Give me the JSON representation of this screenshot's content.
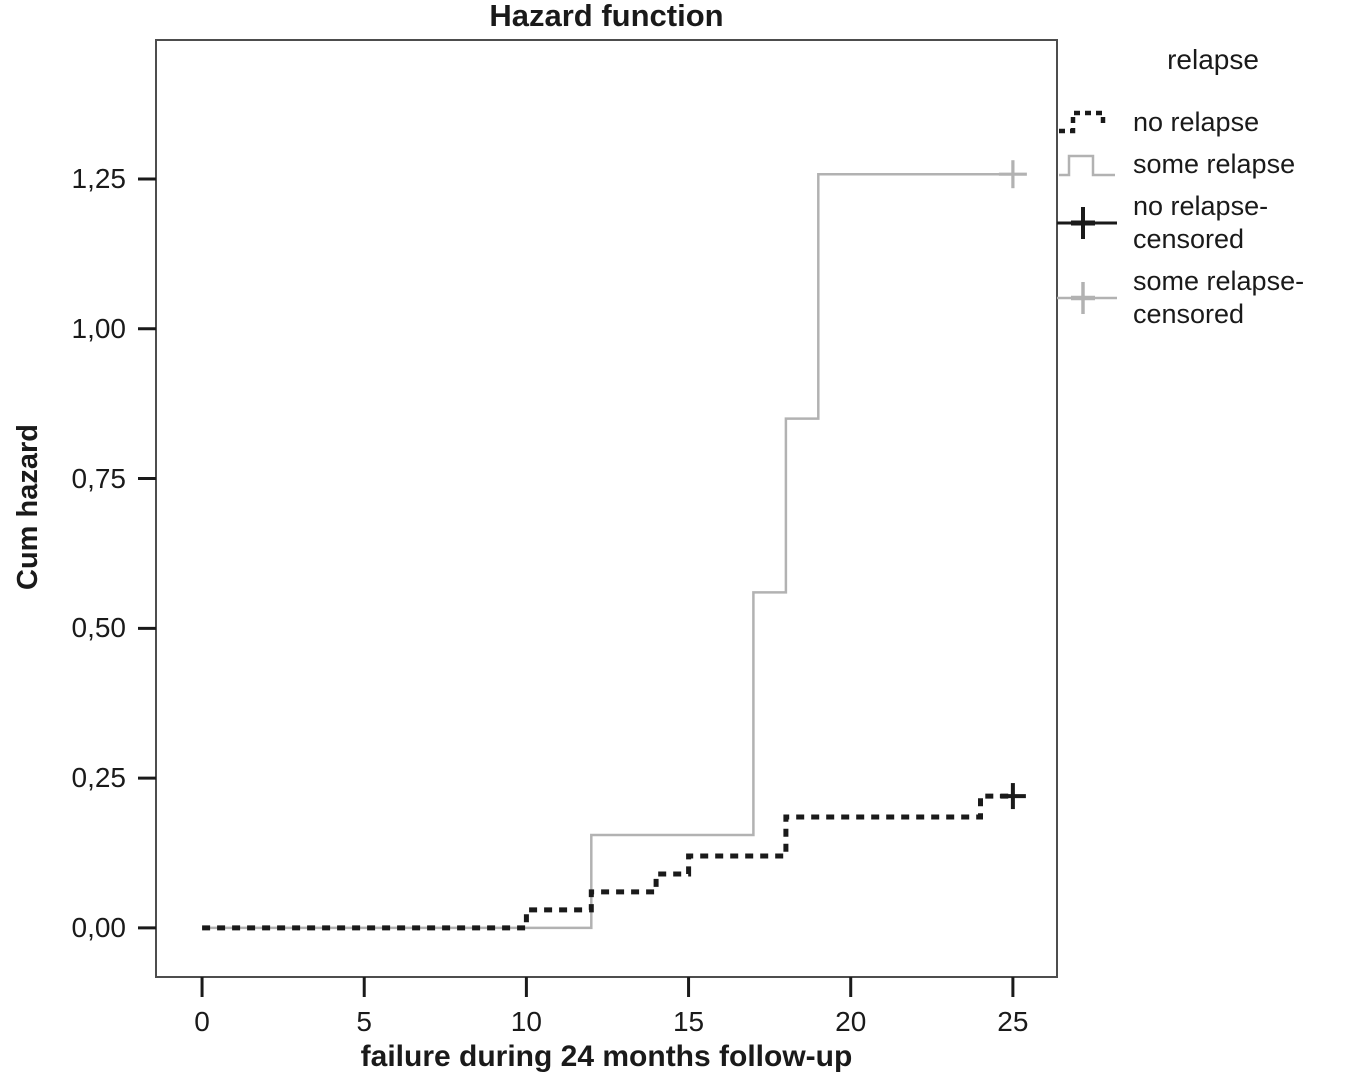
{
  "legend": {
    "title": "relapse",
    "items": [
      {
        "label": "no relapse",
        "color": "#1a1a1a",
        "style": "dashed-line"
      },
      {
        "label": "some relapse",
        "color": "#b2b2b2",
        "style": "solid-line"
      },
      {
        "label": "no relapse-censored",
        "color": "#1a1a1a",
        "style": "plus-marker"
      },
      {
        "label": "some relapse-censored",
        "color": "#b2b2b2",
        "style": "plus-marker"
      }
    ]
  },
  "chart_data": {
    "type": "line",
    "subtype": "step-cumulative-hazard",
    "title": "Hazard function",
    "xlabel": "failure during 24 months follow-up",
    "ylabel": "Cum hazard",
    "xlim": [
      -1.42,
      26.36
    ],
    "ylim": [
      -0.082,
      1.482
    ],
    "x_ticks": [
      0,
      5,
      10,
      15,
      20,
      25
    ],
    "y_ticks": [
      {
        "label": "0,00",
        "value": 0.0
      },
      {
        "label": "0,25",
        "value": 0.25
      },
      {
        "label": "0,50",
        "value": 0.5
      },
      {
        "label": "0,75",
        "value": 0.75
      },
      {
        "label": "1,00",
        "value": 1.0
      },
      {
        "label": "1,25",
        "value": 1.25
      }
    ],
    "grid": "off",
    "legend_position": "outside-right",
    "frame_color": "#4d4d4d",
    "tick_color": "#1a1a1a",
    "series": [
      {
        "name": "no relapse",
        "color": "#1a1a1a",
        "style": "dashed",
        "dash": "8 7",
        "stroke_width": 5,
        "marker_stroke": 4,
        "marker_size": 26,
        "points": [
          [
            0,
            0
          ],
          [
            10,
            0
          ],
          [
            10,
            0.03
          ],
          [
            12,
            0.03
          ],
          [
            12,
            0.06
          ],
          [
            14,
            0.06
          ],
          [
            14,
            0.09
          ],
          [
            15,
            0.09
          ],
          [
            15,
            0.12
          ],
          [
            18,
            0.12
          ],
          [
            18,
            0.185
          ],
          [
            24,
            0.185
          ],
          [
            24,
            0.22
          ],
          [
            25,
            0.22
          ]
        ],
        "censored": [
          [
            25,
            0.22
          ]
        ]
      },
      {
        "name": "some relapse",
        "color": "#b2b2b2",
        "style": "solid",
        "dash": null,
        "stroke_width": 2.5,
        "marker_stroke": 3.2,
        "marker_size": 28,
        "points": [
          [
            0,
            0
          ],
          [
            12,
            0
          ],
          [
            12,
            0.155
          ],
          [
            17,
            0.155
          ],
          [
            17,
            0.56
          ],
          [
            18,
            0.56
          ],
          [
            18,
            0.85
          ],
          [
            19,
            0.85
          ],
          [
            19,
            1.258
          ],
          [
            25,
            1.258
          ]
        ],
        "censored": [
          [
            25,
            1.258
          ]
        ]
      }
    ]
  }
}
